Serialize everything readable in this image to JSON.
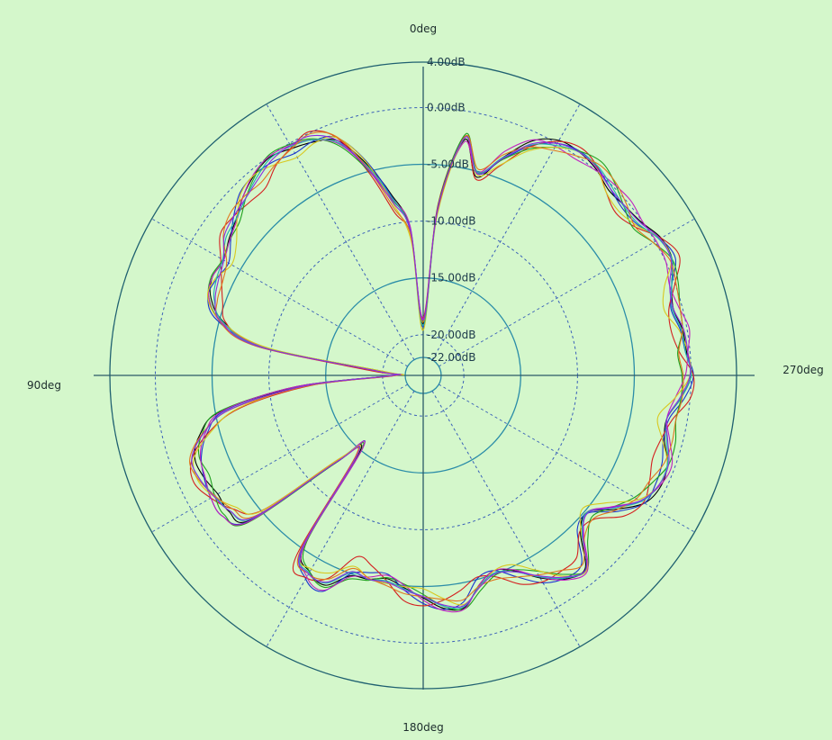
{
  "chart_data": {
    "type": "polar-line",
    "title": "",
    "angle_labels": [
      "0deg",
      "90deg",
      "180deg",
      "270deg"
    ],
    "angle_direction": "counterclockwise",
    "zero_angle": "top",
    "radial_unit": "dB",
    "radial_range": [
      -22,
      4
    ],
    "radial_ticks": [
      4,
      0,
      -5,
      -10,
      -15,
      -20,
      -22
    ],
    "radial_tick_labels": [
      "4.00dB",
      "0.00dB",
      "-5.00dB",
      "-10.00dB",
      "-15.00dB",
      "-20.00dB",
      "-22.00dB"
    ],
    "angular_grid_step_deg": 30,
    "grid": true,
    "legend": "none",
    "colors": {
      "background": "#d4f7cb",
      "solid_rings": "#2a8ca8",
      "dashed_grid": "#3a60b8",
      "axes": "#2a5a68"
    },
    "base_pattern": {
      "angles_deg": [
        0,
        5,
        10,
        15,
        20,
        25,
        30,
        35,
        40,
        45,
        50,
        55,
        60,
        65,
        70,
        75,
        80,
        85,
        90,
        95,
        100,
        105,
        110,
        115,
        120,
        125,
        130,
        135,
        140,
        145,
        150,
        155,
        160,
        165,
        170,
        175,
        180,
        185,
        190,
        195,
        200,
        205,
        210,
        215,
        220,
        225,
        230,
        235,
        240,
        245,
        250,
        255,
        260,
        265,
        270,
        275,
        280,
        285,
        290,
        295,
        300,
        305,
        310,
        315,
        320,
        325,
        330,
        335,
        340,
        345,
        350,
        355
      ],
      "values_dB": [
        -19,
        -11,
        -8,
        -4.5,
        -1.5,
        -0.5,
        -0.5,
        -0.5,
        -0.8,
        -1.2,
        -1.8,
        -2.5,
        -3.5,
        -3.6,
        -3.8,
        -5,
        -9,
        -20,
        -21,
        -13,
        -6,
        -3.5,
        -2.2,
        -2.1,
        -2.2,
        -2.5,
        -4,
        -13,
        -15,
        -5,
        -3.2,
        -3.2,
        -5.2,
        -5.3,
        -5.3,
        -4.5,
        -3.8,
        -3.2,
        -3.2,
        -4.6,
        -5,
        -4.2,
        -3,
        -2,
        -1.6,
        -3.8,
        -4.5,
        -3,
        -1.5,
        -1,
        -0.8,
        -1.2,
        -1.5,
        -0.8,
        -0.3,
        -0.5,
        -0.3,
        -0.6,
        -0.3,
        0.4,
        0.2,
        -0.3,
        -0.2,
        0,
        0.2,
        0.1,
        -0.2,
        -1,
        -3,
        -5.2,
        -2.5,
        -9
      ]
    },
    "series": [
      {
        "color": "#000000",
        "offsets_dB": [
          0.0,
          0.3,
          0.6,
          0.2,
          -0.1,
          -0.4,
          0.0,
          0.4,
          0.3,
          0.0,
          -0.3,
          -0.2,
          0.2,
          0.5,
          0.1,
          -0.4,
          -0.3,
          0.0,
          0.0,
          0.2,
          0.5,
          0.3,
          0.0,
          -0.2,
          -0.5,
          -0.2,
          0.2,
          0.3,
          0.0,
          -0.3,
          -0.4,
          0.0,
          0.4,
          0.3,
          -0.1,
          -0.3,
          -0.2,
          0.2,
          0.4,
          0.1,
          -0.3,
          -0.4,
          0.0,
          0.3,
          0.2,
          -0.2,
          -0.3,
          0.0,
          0.4,
          0.5,
          0.1,
          -0.4,
          -0.3,
          0.0,
          0.3,
          0.2,
          -0.1,
          -0.2,
          0.0,
          0.2,
          0.4,
          0.2,
          -0.2,
          -0.5,
          -0.1,
          0.3,
          0.5,
          0.2,
          -0.2,
          -0.3,
          0.0,
          0.1
        ]
      },
      {
        "color": "#1a33d0",
        "offsets_dB": [
          -0.3,
          0.0,
          0.4,
          0.5,
          0.2,
          -0.3,
          -0.5,
          -0.1,
          0.3,
          0.4,
          0.0,
          -0.4,
          -0.3,
          0.1,
          0.4,
          0.2,
          -0.2,
          -0.3,
          0.2,
          0.5,
          0.1,
          -0.4,
          -0.6,
          -0.2,
          0.2,
          0.5,
          0.3,
          -0.1,
          -0.4,
          -0.2,
          0.3,
          0.6,
          0.2,
          -0.3,
          -0.5,
          -0.1,
          0.3,
          0.3,
          -0.1,
          -0.5,
          -0.3,
          0.2,
          0.5,
          0.2,
          -0.3,
          -0.6,
          -0.2,
          0.3,
          0.4,
          0.0,
          -0.4,
          -0.5,
          -0.1,
          0.3,
          0.5,
          0.1,
          -0.3,
          -0.4,
          0.0,
          0.5,
          0.3,
          -0.2,
          -0.5,
          -0.3,
          0.1,
          0.4,
          0.2,
          -0.3,
          -0.4,
          0.0,
          0.3,
          0.1
        ]
      },
      {
        "color": "#d42020",
        "offsets_dB": [
          0.5,
          -0.2,
          -1.0,
          -0.6,
          0.2,
          0.6,
          0.1,
          -0.5,
          -1.2,
          -0.8,
          0.0,
          0.7,
          0.5,
          -0.4,
          -1.0,
          -0.6,
          0.4,
          0.9,
          -0.2,
          -0.8,
          -1.3,
          -0.5,
          0.3,
          0.8,
          0.2,
          -0.6,
          -1.1,
          -0.3,
          0.6,
          1.0,
          0.2,
          -0.7,
          -1.4,
          -0.9,
          0.1,
          0.8,
          0.5,
          -0.5,
          -1.2,
          -0.6,
          0.3,
          0.9,
          0.4,
          -0.5,
          -1.0,
          -0.3,
          0.6,
          1.0,
          0.3,
          -0.6,
          -1.3,
          -0.7,
          0.2,
          0.8,
          0.5,
          -0.4,
          -1.1,
          -0.6,
          0.3,
          0.9,
          0.4,
          -0.5,
          -1.2,
          -0.8,
          0.1,
          0.7,
          0.4,
          -0.4,
          -1.0,
          -0.5,
          0.3,
          0.6
        ]
      },
      {
        "color": "#20a020",
        "offsets_dB": [
          0.2,
          0.5,
          0.1,
          -0.4,
          -0.6,
          -0.1,
          0.4,
          0.6,
          0.2,
          -0.3,
          -0.7,
          -0.3,
          0.3,
          0.6,
          0.3,
          -0.2,
          -0.6,
          -0.4,
          0.1,
          0.5,
          0.6,
          0.1,
          -0.4,
          -0.7,
          -0.2,
          0.3,
          0.6,
          0.3,
          -0.3,
          -0.7,
          -0.4,
          0.2,
          0.7,
          0.4,
          -0.2,
          -0.6,
          -0.5,
          0.0,
          0.5,
          0.6,
          0.1,
          -0.5,
          -0.7,
          -0.2,
          0.4,
          0.7,
          0.3,
          -0.3,
          -0.6,
          -0.3,
          0.2,
          0.6,
          0.5,
          0.0,
          -0.5,
          -0.6,
          -0.1,
          0.4,
          0.6,
          0.2,
          -0.4,
          -0.7,
          -0.3,
          0.3,
          0.7,
          0.4,
          -0.2,
          -0.6,
          -0.4,
          0.1,
          0.5,
          0.4
        ]
      },
      {
        "color": "#c020c0",
        "offsets_dB": [
          0.4,
          0.6,
          0.2,
          -0.2,
          -0.4,
          -0.2,
          0.3,
          0.5,
          0.4,
          0.0,
          -0.4,
          -0.3,
          0.2,
          0.5,
          0.3,
          -0.1,
          -0.4,
          -0.2,
          0.3,
          0.6,
          0.3,
          -0.2,
          -0.5,
          -0.3,
          0.2,
          0.5,
          0.4,
          0.0,
          -0.4,
          -0.4,
          0.1,
          0.5,
          0.5,
          0.1,
          -0.4,
          -0.5,
          0.0,
          0.4,
          0.5,
          0.1,
          -0.3,
          -0.5,
          -0.1,
          0.4,
          0.5,
          0.2,
          -0.3,
          -0.4,
          0.0,
          0.4,
          0.5,
          0.1,
          -0.3,
          -0.5,
          -0.2,
          0.3,
          0.5,
          0.3,
          -0.2,
          -0.4,
          -0.1,
          0.3,
          0.5,
          0.2,
          -0.2,
          -0.4,
          -0.1,
          0.3,
          0.4,
          0.1,
          -0.2,
          0.2
        ]
      },
      {
        "color": "#d8c820",
        "offsets_dB": [
          -0.6,
          -0.8,
          -0.2,
          0.4,
          0.2,
          -0.5,
          -0.9,
          -0.4,
          0.3,
          0.3,
          -0.4,
          -1.0,
          -0.6,
          0.2,
          0.4,
          -0.2,
          -0.8,
          -0.5,
          0.0,
          -0.4,
          -1.1,
          -0.7,
          0.1,
          0.4,
          -0.1,
          -0.9,
          -1.0,
          -0.3,
          0.3,
          0.1,
          -0.7,
          -1.2,
          -0.5,
          0.2,
          0.3,
          -0.4,
          -1.0,
          -0.7,
          0.1,
          0.3,
          -0.3,
          -1.0,
          -0.8,
          0.0,
          0.4,
          -0.1,
          -0.8,
          -1.0,
          -0.2,
          0.3,
          0.1,
          -0.6,
          -1.1,
          -0.5,
          0.2,
          0.3,
          -0.4,
          -1.0,
          -0.7,
          0.1,
          0.3,
          -0.3,
          -0.9,
          -0.8,
          0.0,
          0.3,
          -0.2,
          -0.8,
          -0.9,
          -0.1,
          0.2,
          -0.4
        ]
      },
      {
        "color": "#20b0b0",
        "offsets_dB": [
          -0.2,
          0.1,
          0.3,
          0.0,
          -0.3,
          -0.2,
          0.2,
          0.3,
          0.0,
          -0.3,
          -0.3,
          0.1,
          0.3,
          0.1,
          -0.2,
          -0.3,
          0.0,
          0.2,
          0.1,
          -0.2,
          -0.3,
          0.0,
          0.3,
          0.2,
          -0.2,
          -0.3,
          -0.1,
          0.2,
          0.3,
          0.0,
          -0.3,
          -0.2,
          0.1,
          0.3,
          0.1,
          -0.2,
          -0.3,
          0.0,
          0.3,
          0.2,
          -0.1,
          -0.3,
          -0.1,
          0.2,
          0.3,
          0.0,
          -0.3,
          -0.2,
          0.1,
          0.3,
          0.1,
          -0.2,
          -0.3,
          0.0,
          0.3,
          0.1,
          -0.2,
          -0.3,
          0.0,
          0.2,
          0.2,
          -0.1,
          -0.3,
          -0.1,
          0.2,
          0.3,
          0.0,
          -0.2,
          -0.2,
          0.1,
          0.2,
          -0.1
        ]
      },
      {
        "color": "#e07820",
        "offsets_dB": [
          0.1,
          -0.3,
          -0.6,
          -0.2,
          0.3,
          0.4,
          0.0,
          -0.4,
          -0.6,
          -0.1,
          0.4,
          0.4,
          -0.1,
          -0.5,
          -0.5,
          0.0,
          0.4,
          0.3,
          -0.2,
          -0.6,
          -0.4,
          0.1,
          0.5,
          0.3,
          -0.2,
          -0.6,
          -0.4,
          0.1,
          0.5,
          0.3,
          -0.2,
          -0.6,
          -0.3,
          0.2,
          0.5,
          0.2,
          -0.3,
          -0.6,
          -0.3,
          0.2,
          0.5,
          0.2,
          -0.3,
          -0.6,
          -0.2,
          0.3,
          0.5,
          0.1,
          -0.4,
          -0.6,
          -0.2,
          0.3,
          0.5,
          0.1,
          -0.4,
          -0.5,
          -0.1,
          0.4,
          0.4,
          0.0,
          -0.4,
          -0.5,
          0.0,
          0.4,
          0.4,
          -0.1,
          -0.5,
          -0.4,
          0.1,
          0.4,
          0.3,
          -0.1
        ]
      },
      {
        "color": "#8a2be2",
        "offsets_dB": [
          0.3,
          0.2,
          -0.1,
          -0.3,
          -0.1,
          0.2,
          0.3,
          0.1,
          -0.2,
          -0.3,
          0.0,
          0.3,
          0.2,
          -0.1,
          -0.3,
          -0.1,
          0.2,
          0.3,
          0.0,
          -0.2,
          -0.3,
          0.0,
          0.3,
          0.2,
          -0.1,
          -0.3,
          -0.2,
          0.2,
          0.3,
          0.1,
          -0.2,
          -0.3,
          0.0,
          0.3,
          0.2,
          -0.1,
          -0.3,
          -0.1,
          0.2,
          0.3,
          0.0,
          -0.3,
          -0.2,
          0.1,
          0.3,
          0.1,
          -0.2,
          -0.3,
          0.0,
          0.3,
          0.2,
          -0.1,
          -0.3,
          -0.1,
          0.2,
          0.3,
          0.0,
          -0.2,
          -0.2,
          0.1,
          0.3,
          0.1,
          -0.2,
          -0.3,
          0.0,
          0.3,
          0.2,
          -0.1,
          -0.3,
          0.0,
          0.2,
          0.2
        ]
      }
    ]
  }
}
